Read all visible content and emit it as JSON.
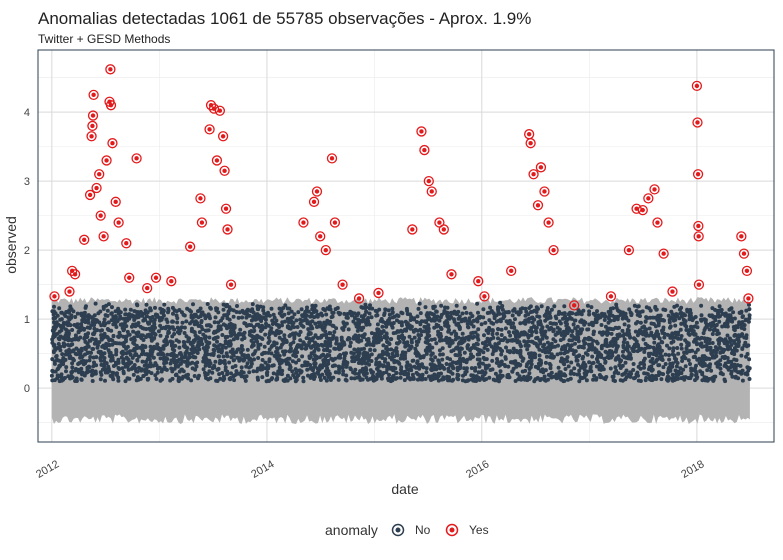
{
  "chart_data": {
    "type": "scatter",
    "title": "Anomalias detectadas 1061 de 55785 observações - Aprox. 1.9%",
    "subtitle": "Twitter + GESD Methods",
    "xlabel": "date",
    "ylabel": "observed",
    "x_ticks": [
      "2012",
      "2014",
      "2016",
      "2018"
    ],
    "y_ticks": [
      "0",
      "1",
      "2",
      "3",
      "4"
    ],
    "xlim": [
      "2011-11-15",
      "2018-09-20"
    ],
    "ylim": [
      -0.78,
      4.9
    ],
    "grid": true,
    "legend": {
      "title": "anomaly",
      "position": "bottom",
      "entries": [
        {
          "label": "No",
          "color": "#2C3E50"
        },
        {
          "label": "Yes",
          "color": "#E31A1C"
        }
      ]
    },
    "colors": {
      "normal": "#2C3E50",
      "anomaly": "#E31A1C",
      "band": "#B3B3B3",
      "panel_border": "#2C3E50",
      "grid": "#D9D9D9"
    },
    "series": [
      {
        "name": "No",
        "description_range": "dense observations between about 0.1 and 1.2",
        "x_start": "2012-01-01",
        "x_end": "2018-06-30",
        "values_low": 0.1,
        "values_high": 1.25
      },
      {
        "name": "Yes",
        "points": [
          {
            "x": "2012-01-10",
            "y": 1.33
          },
          {
            "x": "2012-03-01",
            "y": 1.4
          },
          {
            "x": "2012-03-10",
            "y": 1.7
          },
          {
            "x": "2012-03-20",
            "y": 1.65
          },
          {
            "x": "2012-04-20",
            "y": 2.15
          },
          {
            "x": "2012-05-10",
            "y": 2.8
          },
          {
            "x": "2012-05-15",
            "y": 3.65
          },
          {
            "x": "2012-05-18",
            "y": 3.8
          },
          {
            "x": "2012-05-20",
            "y": 3.95
          },
          {
            "x": "2012-05-22",
            "y": 4.25
          },
          {
            "x": "2012-06-01",
            "y": 2.9
          },
          {
            "x": "2012-06-10",
            "y": 3.1
          },
          {
            "x": "2012-06-15",
            "y": 2.5
          },
          {
            "x": "2012-06-25",
            "y": 2.2
          },
          {
            "x": "2012-07-05",
            "y": 3.3
          },
          {
            "x": "2012-07-15",
            "y": 4.15
          },
          {
            "x": "2012-07-18",
            "y": 4.62
          },
          {
            "x": "2012-07-20",
            "y": 4.1
          },
          {
            "x": "2012-07-25",
            "y": 3.55
          },
          {
            "x": "2012-08-05",
            "y": 2.7
          },
          {
            "x": "2012-08-15",
            "y": 2.4
          },
          {
            "x": "2012-09-10",
            "y": 2.1
          },
          {
            "x": "2012-09-20",
            "y": 1.6
          },
          {
            "x": "2012-10-15",
            "y": 3.33
          },
          {
            "x": "2012-11-20",
            "y": 1.45
          },
          {
            "x": "2012-12-20",
            "y": 1.6
          },
          {
            "x": "2013-02-10",
            "y": 1.55
          },
          {
            "x": "2013-04-15",
            "y": 2.05
          },
          {
            "x": "2013-05-20",
            "y": 2.75
          },
          {
            "x": "2013-05-25",
            "y": 2.4
          },
          {
            "x": "2013-06-20",
            "y": 3.75
          },
          {
            "x": "2013-06-25",
            "y": 4.1
          },
          {
            "x": "2013-07-05",
            "y": 4.05
          },
          {
            "x": "2013-07-15",
            "y": 3.3
          },
          {
            "x": "2013-07-25",
            "y": 4.02
          },
          {
            "x": "2013-08-05",
            "y": 3.65
          },
          {
            "x": "2013-08-10",
            "y": 3.15
          },
          {
            "x": "2013-08-15",
            "y": 2.6
          },
          {
            "x": "2013-08-20",
            "y": 2.3
          },
          {
            "x": "2013-09-01",
            "y": 1.5
          },
          {
            "x": "2014-05-05",
            "y": 2.4
          },
          {
            "x": "2014-06-10",
            "y": 2.7
          },
          {
            "x": "2014-06-20",
            "y": 2.85
          },
          {
            "x": "2014-07-01",
            "y": 2.2
          },
          {
            "x": "2014-07-20",
            "y": 2.0
          },
          {
            "x": "2014-08-10",
            "y": 3.33
          },
          {
            "x": "2014-08-20",
            "y": 2.4
          },
          {
            "x": "2014-09-15",
            "y": 1.5
          },
          {
            "x": "2014-11-10",
            "y": 1.3
          },
          {
            "x": "2015-01-15",
            "y": 1.38
          },
          {
            "x": "2015-05-10",
            "y": 2.3
          },
          {
            "x": "2015-06-10",
            "y": 3.72
          },
          {
            "x": "2015-06-20",
            "y": 3.45
          },
          {
            "x": "2015-07-05",
            "y": 3.0
          },
          {
            "x": "2015-07-15",
            "y": 2.85
          },
          {
            "x": "2015-08-10",
            "y": 2.4
          },
          {
            "x": "2015-08-25",
            "y": 2.3
          },
          {
            "x": "2015-09-20",
            "y": 1.65
          },
          {
            "x": "2015-12-20",
            "y": 1.55
          },
          {
            "x": "2016-01-10",
            "y": 1.33
          },
          {
            "x": "2016-04-10",
            "y": 1.7
          },
          {
            "x": "2016-06-10",
            "y": 3.68
          },
          {
            "x": "2016-06-15",
            "y": 3.55
          },
          {
            "x": "2016-06-25",
            "y": 3.1
          },
          {
            "x": "2016-07-10",
            "y": 2.65
          },
          {
            "x": "2016-07-20",
            "y": 3.2
          },
          {
            "x": "2016-08-01",
            "y": 2.85
          },
          {
            "x": "2016-08-15",
            "y": 2.4
          },
          {
            "x": "2016-09-01",
            "y": 2.0
          },
          {
            "x": "2016-11-10",
            "y": 1.2
          },
          {
            "x": "2017-03-15",
            "y": 1.33
          },
          {
            "x": "2017-05-15",
            "y": 2.0
          },
          {
            "x": "2017-06-10",
            "y": 2.6
          },
          {
            "x": "2017-07-01",
            "y": 2.58
          },
          {
            "x": "2017-07-20",
            "y": 2.75
          },
          {
            "x": "2017-08-10",
            "y": 2.88
          },
          {
            "x": "2017-08-20",
            "y": 2.4
          },
          {
            "x": "2017-09-10",
            "y": 1.95
          },
          {
            "x": "2017-10-10",
            "y": 1.4
          },
          {
            "x": "2018-01-01",
            "y": 4.38
          },
          {
            "x": "2018-01-03",
            "y": 3.85
          },
          {
            "x": "2018-01-05",
            "y": 3.1
          },
          {
            "x": "2018-01-06",
            "y": 2.35
          },
          {
            "x": "2018-01-07",
            "y": 2.2
          },
          {
            "x": "2018-01-08",
            "y": 1.5
          },
          {
            "x": "2018-06-01",
            "y": 2.2
          },
          {
            "x": "2018-06-10",
            "y": 1.95
          },
          {
            "x": "2018-06-20",
            "y": 1.7
          },
          {
            "x": "2018-06-25",
            "y": 1.3
          }
        ]
      }
    ]
  }
}
